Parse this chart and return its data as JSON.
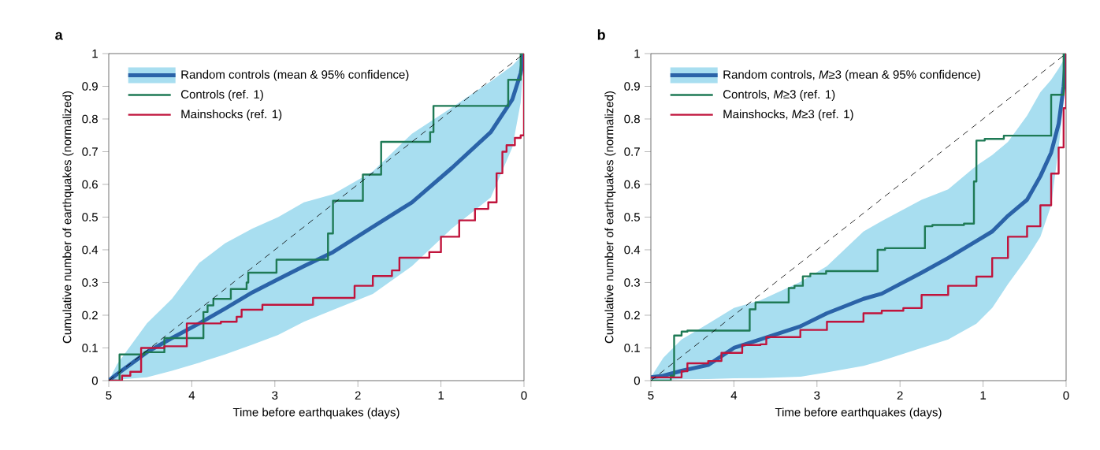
{
  "chart_data": [
    {
      "type": "line",
      "title": "a",
      "xlabel": "Time before earthquakes (days)",
      "ylabel": "Cumulative number of earthquakes (normalized)",
      "xlim": [
        5,
        0
      ],
      "xticks": [
        5,
        4,
        3,
        2,
        1,
        0
      ],
      "ylim": [
        0,
        1
      ],
      "yticks": [
        0,
        0.1,
        0.2,
        0.3,
        0.4,
        0.5,
        0.6,
        0.7,
        0.8,
        0.9,
        1
      ],
      "legend": "top left",
      "grid": false,
      "series": [
        {
          "color": "#000000",
          "line_style": "dashed",
          "x": [
            5,
            0
          ],
          "values": [
            0,
            1
          ]
        },
        {
          "name": "Random controls (mean & 95% confidence)",
          "color": "#2b63a8",
          "x": [
            5,
            4.9,
            4.54,
            4.24,
            3.91,
            3.6,
            3.27,
            2.96,
            2.65,
            2.3,
            1.82,
            1.35,
            0.87,
            0.4,
            0.14,
            0.04,
            0
          ],
          "values": [
            0,
            0.02,
            0.087,
            0.13,
            0.175,
            0.22,
            0.27,
            0.31,
            0.35,
            0.393,
            0.47,
            0.545,
            0.65,
            0.76,
            0.86,
            0.94,
            1
          ],
          "upper": [
            0,
            0.05,
            0.175,
            0.25,
            0.36,
            0.42,
            0.465,
            0.5,
            0.545,
            0.57,
            0.64,
            0.755,
            0.835,
            0.915,
            0.963,
            0.99,
            1
          ],
          "lower": [
            0,
            0.003,
            0.01,
            0.03,
            0.055,
            0.08,
            0.11,
            0.14,
            0.18,
            0.216,
            0.265,
            0.35,
            0.465,
            0.56,
            0.713,
            0.85,
            1
          ]
        },
        {
          "type": "step",
          "name": "Controls (ref. 1)",
          "color": "#1e7a55",
          "x": [
            5,
            4.87,
            4.57,
            4.33,
            3.86,
            3.81,
            3.74,
            3.53,
            3.34,
            3.32,
            2.98,
            2.36,
            2.3,
            1.94,
            1.72,
            1.13,
            1.09,
            0.19,
            0.04,
            0
          ],
          "values": [
            0,
            0.08,
            0.087,
            0.13,
            0.21,
            0.23,
            0.25,
            0.28,
            0.3,
            0.33,
            0.37,
            0.45,
            0.55,
            0.63,
            0.73,
            0.76,
            0.84,
            0.92,
            1,
            1
          ]
        },
        {
          "type": "step",
          "name": "Mainshocks (ref. 1)",
          "color": "#c0143c",
          "x": [
            5,
            4.84,
            4.74,
            4.61,
            4.33,
            4.06,
            3.65,
            3.46,
            3.4,
            3.15,
            2.54,
            2.04,
            1.82,
            1.59,
            1.5,
            1.14,
            1.0,
            0.78,
            0.59,
            0.43,
            0.33,
            0.26,
            0.21,
            0.11,
            0.04,
            0
          ],
          "values": [
            0,
            0.015,
            0.027,
            0.1,
            0.105,
            0.175,
            0.18,
            0.195,
            0.217,
            0.232,
            0.253,
            0.29,
            0.32,
            0.337,
            0.376,
            0.393,
            0.44,
            0.49,
            0.525,
            0.545,
            0.634,
            0.7,
            0.72,
            0.742,
            0.75,
            1
          ]
        }
      ]
    },
    {
      "type": "line",
      "title": "b",
      "xlabel": "Time before earthquakes (days)",
      "ylabel": "Cumulative number of earthquakes (normalized)",
      "xlim": [
        5,
        0
      ],
      "xticks": [
        5,
        4,
        3,
        2,
        1,
        0
      ],
      "ylim": [
        0,
        1
      ],
      "yticks": [
        0,
        0.1,
        0.2,
        0.3,
        0.4,
        0.5,
        0.6,
        0.7,
        0.8,
        0.9,
        1
      ],
      "legend": "top left",
      "grid": false,
      "series": [
        {
          "color": "#000000",
          "line_style": "dashed",
          "x": [
            5,
            0
          ],
          "values": [
            0,
            1
          ]
        },
        {
          "name": "Random controls, *M*≥3 (mean & 95% confidence)",
          "color": "#2b63a8",
          "x": [
            5,
            4.85,
            4.63,
            4.31,
            4.0,
            3.68,
            3.2,
            2.88,
            2.44,
            2.22,
            1.74,
            1.42,
            1.08,
            0.89,
            0.7,
            0.47,
            0.31,
            0.18,
            0.09,
            0.03,
            0
          ],
          "values": [
            0.01,
            0.015,
            0.03,
            0.048,
            0.1,
            0.126,
            0.166,
            0.206,
            0.25,
            0.266,
            0.33,
            0.375,
            0.427,
            0.456,
            0.504,
            0.553,
            0.625,
            0.697,
            0.785,
            0.9,
            1
          ],
          "upper": [
            0.01,
            0.07,
            0.126,
            0.174,
            0.222,
            0.246,
            0.302,
            0.35,
            0.456,
            0.488,
            0.553,
            0.585,
            0.657,
            0.69,
            0.73,
            0.81,
            0.882,
            0.92,
            0.954,
            0.98,
            1
          ],
          "lower": [
            0,
            0.002,
            0.004,
            0.005,
            0.007,
            0.008,
            0.012,
            0.025,
            0.045,
            0.061,
            0.1,
            0.126,
            0.174,
            0.222,
            0.295,
            0.375,
            0.44,
            0.536,
            0.713,
            0.85,
            1
          ]
        },
        {
          "type": "step",
          "name": "Controls, *M*≥3 (ref. 1)",
          "color": "#1e7a55",
          "x": [
            5,
            4.76,
            4.72,
            4.63,
            4.56,
            3.81,
            3.74,
            3.34,
            3.27,
            3.17,
            3.08,
            2.89,
            2.27,
            2.18,
            1.7,
            1.61,
            1.23,
            1.11,
            1.08,
            0.98,
            0.75,
            0.18,
            0.03,
            0
          ],
          "values": [
            0,
            0.015,
            0.138,
            0.15,
            0.153,
            0.218,
            0.239,
            0.283,
            0.29,
            0.319,
            0.327,
            0.335,
            0.4,
            0.405,
            0.472,
            0.476,
            0.48,
            0.609,
            0.734,
            0.739,
            0.749,
            0.874,
            1,
            1
          ]
        },
        {
          "type": "step",
          "name": "Mainshocks, *M*≥3 (ref. 1)",
          "color": "#c0143c",
          "x": [
            5,
            4.76,
            4.63,
            4.56,
            4.31,
            4.15,
            3.9,
            3.68,
            3.61,
            3.2,
            2.88,
            2.44,
            2.22,
            1.96,
            1.74,
            1.42,
            1.08,
            0.89,
            0.7,
            0.47,
            0.31,
            0.18,
            0.09,
            0.03,
            0
          ],
          "values": [
            0.01,
            0.01,
            0.029,
            0.053,
            0.06,
            0.085,
            0.109,
            0.111,
            0.133,
            0.155,
            0.18,
            0.206,
            0.214,
            0.222,
            0.262,
            0.29,
            0.318,
            0.375,
            0.44,
            0.472,
            0.536,
            0.633,
            0.713,
            0.833,
            1
          ]
        }
      ]
    }
  ]
}
